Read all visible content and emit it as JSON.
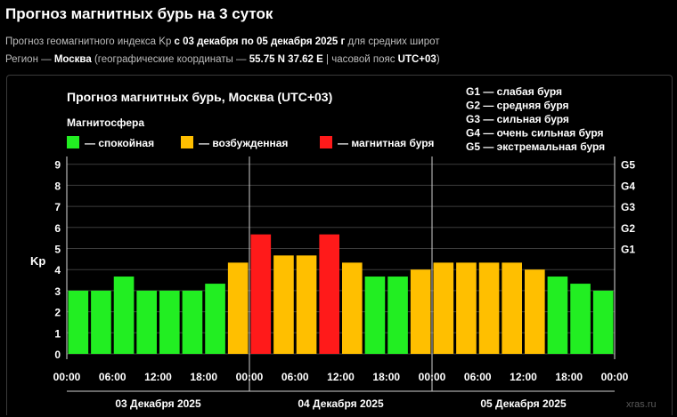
{
  "header": {
    "title": "Прогноз магнитных бурь на 3 суток",
    "line1_prefix": "Прогноз геомагнитного индекса Kp ",
    "line1_bold": "с 03 декабря по 05 декабря 2025 г",
    "line1_suffix": " для средних широт",
    "line2_prefix": "Регион — ",
    "line2_region": "Москва",
    "line2_mid": " (географические координаты — ",
    "line2_coords": "55.75 N 37.62 E",
    "line2_sep": " | часовой пояс ",
    "line2_tz": "UTC+03",
    "line2_end": ")"
  },
  "chart_data": {
    "type": "bar",
    "title": "Прогноз магнитных бурь, Москва (UTC+03)",
    "ylabel": "Kp",
    "ylim": [
      0,
      9
    ],
    "yticks": [
      "0",
      "1",
      "2",
      "3",
      "4",
      "5",
      "6",
      "7",
      "8",
      "9"
    ],
    "storm_axis": [
      {
        "label": "G1",
        "kp": 5
      },
      {
        "label": "G2",
        "kp": 6
      },
      {
        "label": "G3",
        "kp": 7
      },
      {
        "label": "G4",
        "kp": 8
      },
      {
        "label": "G5",
        "kp": 9
      }
    ],
    "storm_legend": [
      "G1 — слабая буря",
      "G2 — средняя буря",
      "G3 — сильная буря",
      "G4 — очень сильная буря",
      "G5 — экстремальная буря"
    ],
    "legend_title": "Магнитосфера",
    "legend": [
      {
        "label": "— спокойная",
        "color": "#22ee22"
      },
      {
        "label": "— возбужденная",
        "color": "#ffbf00"
      },
      {
        "label": "— магнитная буря",
        "color": "#ff1a1a"
      }
    ],
    "x_ticks": [
      "00:00",
      "06:00",
      "12:00",
      "18:00",
      "00:00",
      "06:00",
      "12:00",
      "18:00",
      "00:00",
      "06:00",
      "12:00",
      "18:00",
      "00:00"
    ],
    "days": [
      "03 Декабря 2025",
      "04 Декабря 2025",
      "05 Декабря 2025"
    ],
    "values": [
      3.0,
      3.0,
      3.67,
      3.0,
      3.0,
      3.0,
      3.33,
      4.33,
      5.67,
      4.67,
      4.67,
      5.67,
      4.33,
      3.67,
      3.67,
      4.0,
      4.33,
      4.33,
      4.33,
      4.33,
      4.0,
      3.67,
      3.33,
      3.0
    ],
    "levels": [
      "quiet",
      "quiet",
      "quiet",
      "quiet",
      "quiet",
      "quiet",
      "quiet",
      "active",
      "storm",
      "active",
      "active",
      "storm",
      "active",
      "quiet",
      "quiet",
      "active",
      "active",
      "active",
      "active",
      "active",
      "active",
      "quiet",
      "quiet",
      "quiet"
    ],
    "level_colors": {
      "quiet": "#22ee22",
      "active": "#ffbf00",
      "storm": "#ff1a1a"
    },
    "grid": true,
    "watermark": "xras.ru"
  }
}
